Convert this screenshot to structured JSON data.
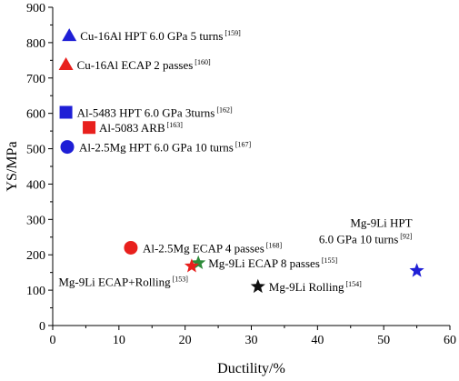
{
  "chart_data": {
    "type": "scatter",
    "title": "",
    "xlabel": "Ductility/%",
    "ylabel": "YS/MPa",
    "xlim": [
      0,
      60
    ],
    "ylim": [
      0,
      900
    ],
    "xticks": [
      0,
      10,
      20,
      30,
      40,
      50,
      60
    ],
    "yticks": [
      0,
      100,
      200,
      300,
      400,
      500,
      600,
      700,
      800,
      900
    ],
    "grid": false,
    "points": [
      {
        "label": "Cu-16Al HPT 6.0 GPa 5 turns",
        "ref": "[159]",
        "x": 2.5,
        "y": 820,
        "marker": "triangle",
        "color": "#1f1fd6"
      },
      {
        "label": "Cu-16Al ECAP 2 passes",
        "ref": "[160]",
        "x": 2.0,
        "y": 738,
        "marker": "triangle",
        "color": "#e8201d"
      },
      {
        "label": "Al-5483 HPT 6.0 GPa 3turns",
        "ref": "[162]",
        "x": 2.0,
        "y": 603,
        "marker": "square",
        "color": "#1f1fd6"
      },
      {
        "label": "Al-5083 ARB",
        "ref": "[163]",
        "x": 5.5,
        "y": 560,
        "marker": "square",
        "color": "#e8201d"
      },
      {
        "label": "Al-2.5Mg HPT 6.0 GPa 10 turns",
        "ref": "[167]",
        "x": 2.2,
        "y": 505,
        "marker": "circle",
        "color": "#1f1fd6"
      },
      {
        "label": "Al-2.5Mg ECAP 4 passes",
        "ref": "[168]",
        "x": 11.8,
        "y": 220,
        "marker": "circle",
        "color": "#e8201d"
      },
      {
        "label": "Mg-9Li ECAP 8 passes",
        "ref": "[155]",
        "x": 22.0,
        "y": 177,
        "marker": "star",
        "color": "#2e8b3a"
      },
      {
        "label": "Mg-9Li ECAP+Rolling",
        "ref": "[153]",
        "x": 21.0,
        "y": 168,
        "marker": "star",
        "color": "#e8201d"
      },
      {
        "label": "Mg-9Li Rolling",
        "ref": "[154]",
        "x": 31.0,
        "y": 110,
        "marker": "star",
        "color": "#111111"
      },
      {
        "label": "Mg-9Li HPT|6.0 GPa 10 turns",
        "ref": "[92]",
        "x": 55.0,
        "y": 155,
        "marker": "star",
        "color": "#1f1fd6"
      }
    ]
  }
}
